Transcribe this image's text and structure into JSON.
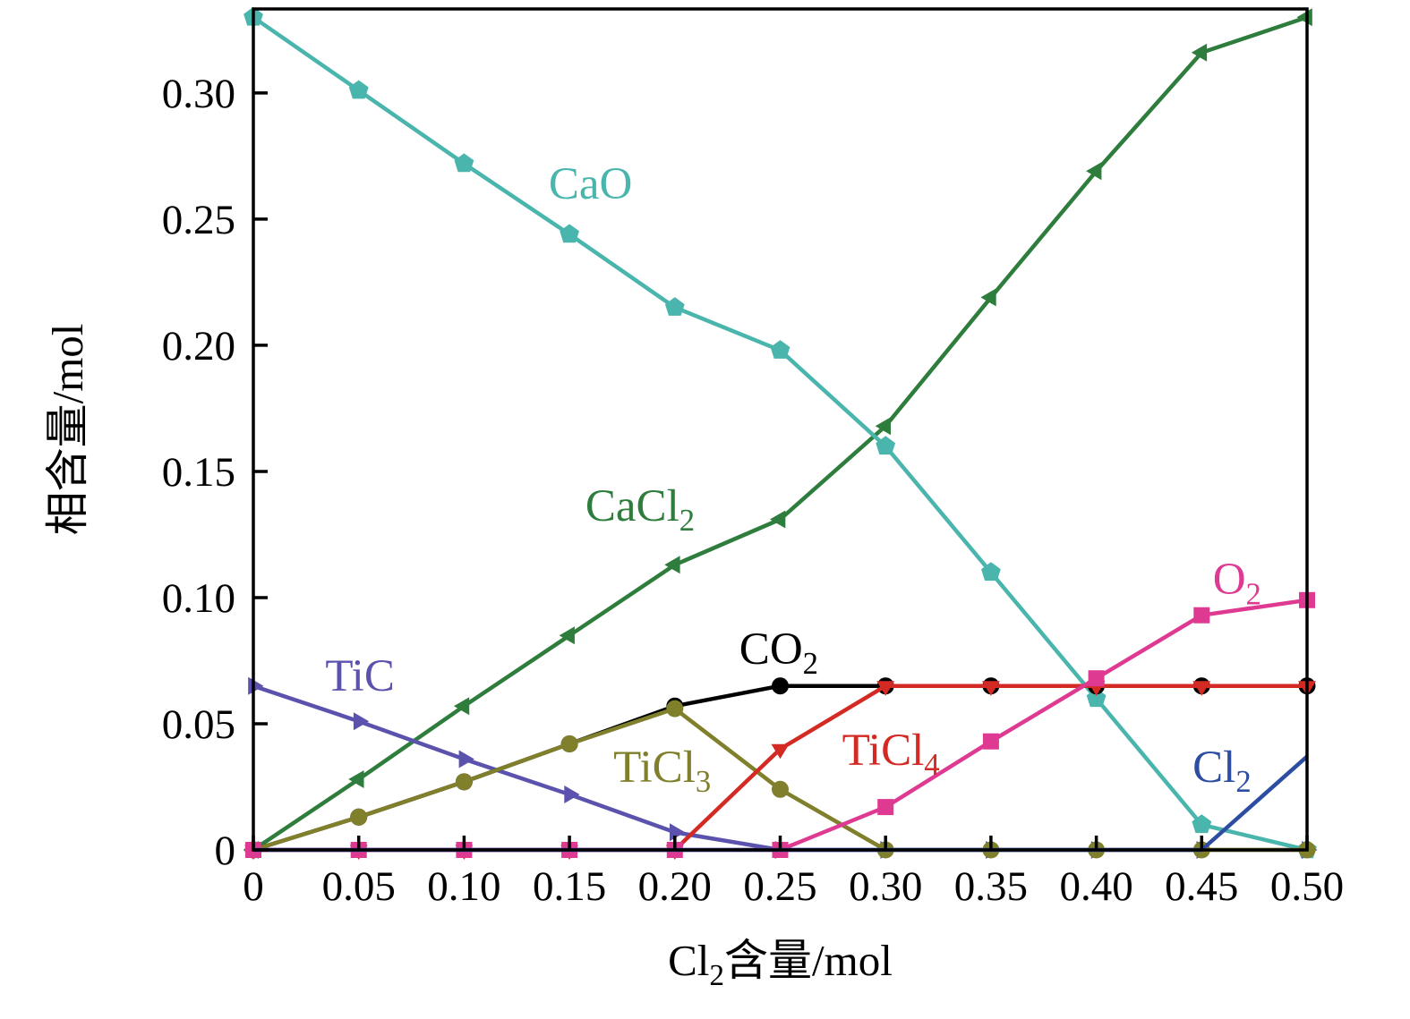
{
  "page": {
    "background": "#ffffff",
    "description": "Phase content vs Cl2 content equilibrium diagram"
  },
  "chart_data": {
    "type": "line",
    "title": "",
    "xlabel_parts": [
      {
        "t": "Cl"
      },
      {
        "t": "2",
        "sub": true
      },
      {
        "t": "含量/mol"
      }
    ],
    "ylabel": "相含量/mol",
    "xlim": [
      0,
      0.5
    ],
    "ylim": [
      0,
      0.3333
    ],
    "grid": false,
    "legend": "inline-labels",
    "frame_color": "#000000",
    "xticks": [
      0,
      0.05,
      0.1,
      0.15,
      0.2,
      0.25,
      0.3,
      0.35,
      0.4,
      0.45,
      0.5
    ],
    "xtick_labels": [
      "0",
      "0.05",
      "0.10",
      "0.15",
      "0.20",
      "0.25",
      "0.30",
      "0.35",
      "0.40",
      "0.45",
      "0.50"
    ],
    "yticks": [
      0,
      0.05,
      0.1,
      0.15,
      0.2,
      0.25,
      0.3
    ],
    "ytick_labels": [
      "0",
      "0.05",
      "0.10",
      "0.15",
      "0.20",
      "0.25",
      "0.30"
    ],
    "x": [
      0,
      0.05,
      0.1,
      0.15,
      0.2,
      0.25,
      0.3,
      0.35,
      0.4,
      0.45,
      0.5
    ],
    "series": [
      {
        "name": "CaCl2",
        "color": "#2e7d3c",
        "marker": "triangle-left",
        "values": [
          0,
          0.028,
          0.057,
          0.085,
          0.113,
          0.131,
          0.168,
          0.219,
          0.269,
          0.316,
          0.33
        ]
      },
      {
        "name": "CaO",
        "color": "#4ab5ad",
        "marker": "pentagon",
        "values": [
          0.33,
          0.301,
          0.272,
          0.244,
          0.215,
          0.198,
          0.16,
          0.11,
          0.06,
          0.01,
          0
        ]
      },
      {
        "name": "TiC",
        "color": "#5b52ae",
        "marker": "triangle-right",
        "values": [
          0.065,
          0.051,
          0.036,
          0.022,
          0.007,
          0,
          0,
          0,
          0,
          0,
          0
        ]
      },
      {
        "name": "CO2",
        "color": "#000000",
        "marker": "circle",
        "values": [
          0,
          0.013,
          0.027,
          0.042,
          0.057,
          0.065,
          0.065,
          0.065,
          0.065,
          0.065,
          0.065
        ]
      },
      {
        "name": "TiCl3",
        "color": "#7f7f2c",
        "marker": "circle",
        "values": [
          0,
          0.013,
          0.027,
          0.042,
          0.056,
          0.024,
          0,
          0,
          0,
          0,
          0
        ]
      },
      {
        "name": "TiCl4",
        "color": "#d42a24",
        "marker": "triangle-down",
        "values": [
          0,
          0,
          0,
          0,
          0,
          0.04,
          0.065,
          0.065,
          0.065,
          0.065,
          0.065
        ]
      },
      {
        "name": "O2",
        "color": "#df3a92",
        "marker": "square",
        "values": [
          0,
          0,
          0,
          0,
          0,
          0,
          0.017,
          0.043,
          0.068,
          0.093,
          0.099
        ]
      },
      {
        "name": "Cl2",
        "color": "#2c4da1",
        "marker": "none",
        "values": [
          0,
          0,
          0,
          0,
          0,
          0,
          0,
          0,
          0,
          0,
          0.037
        ]
      }
    ],
    "annotations": [
      {
        "name": "label-CaO",
        "parts": [
          {
            "t": "CaO"
          }
        ],
        "x": 0.16,
        "y": 0.2642,
        "color": "#4ab5ad"
      },
      {
        "name": "label-CaCl2",
        "parts": [
          {
            "t": "CaCl"
          },
          {
            "t": "2",
            "sub": true
          }
        ],
        "x": 0.1835,
        "y": 0.1365,
        "color": "#2e7d3c"
      },
      {
        "name": "label-TiC",
        "parts": [
          {
            "t": "TiC"
          }
        ],
        "x": 0.0506,
        "y": 0.0691,
        "color": "#5b52ae"
      },
      {
        "name": "label-TiCl3",
        "parts": [
          {
            "t": "TiCl"
          },
          {
            "t": "3",
            "sub": true
          }
        ],
        "x": 0.194,
        "y": 0.033,
        "color": "#7f7f2c"
      },
      {
        "name": "label-CO2",
        "parts": [
          {
            "t": "CO"
          },
          {
            "t": "2",
            "sub": true
          }
        ],
        "x": 0.2493,
        "y": 0.0798,
        "color": "#000000"
      },
      {
        "name": "label-TiCl4",
        "parts": [
          {
            "t": "TiCl"
          },
          {
            "t": "4",
            "sub": true
          }
        ],
        "x": 0.3025,
        "y": 0.0397,
        "color": "#d42a24"
      },
      {
        "name": "label-O2",
        "parts": [
          {
            "t": "O"
          },
          {
            "t": "2",
            "sub": true
          }
        ],
        "x": 0.4668,
        "y": 0.1074,
        "color": "#df3a92"
      },
      {
        "name": "label-Cl2",
        "parts": [
          {
            "t": "Cl"
          },
          {
            "t": "2",
            "sub": true
          }
        ],
        "x": 0.4596,
        "y": 0.033,
        "color": "#2c4da1"
      }
    ]
  }
}
